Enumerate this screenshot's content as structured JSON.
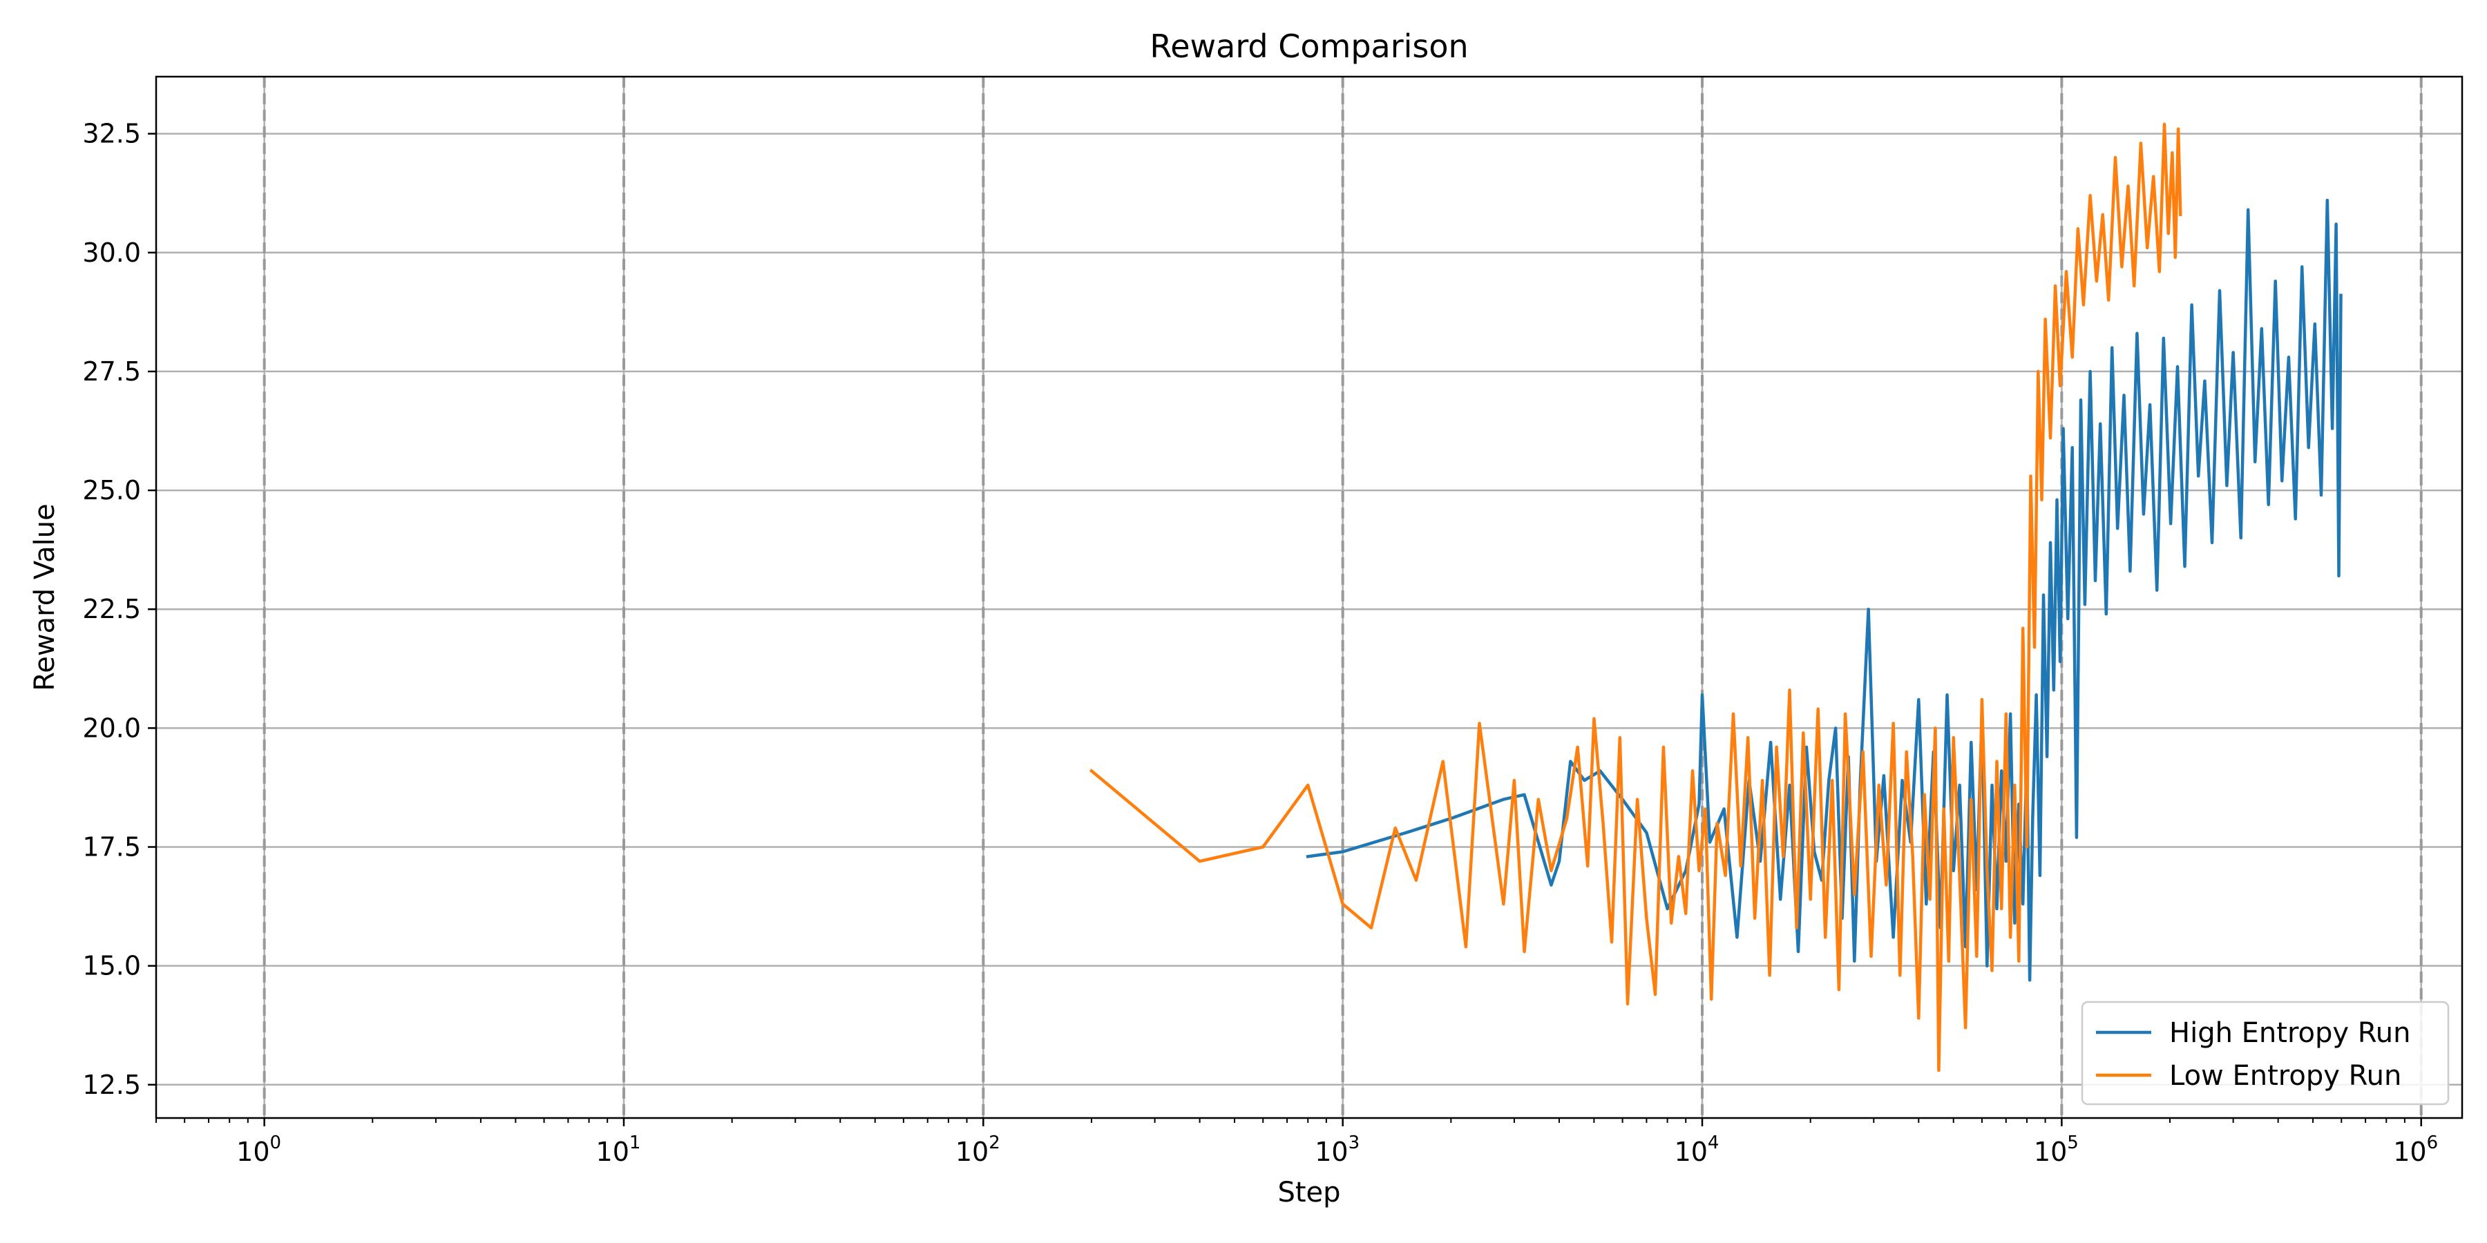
{
  "chart_data": {
    "type": "line",
    "title": "Reward Comparison",
    "xlabel": "Step",
    "ylabel": "Reward Value",
    "xscale": "log",
    "xlim": [
      0.5,
      1300000
    ],
    "ylim": [
      11.8,
      33.7
    ],
    "x_ticks": [
      {
        "base": "10",
        "exp": "0"
      },
      {
        "base": "10",
        "exp": "1"
      },
      {
        "base": "10",
        "exp": "2"
      },
      {
        "base": "10",
        "exp": "3"
      },
      {
        "base": "10",
        "exp": "4"
      },
      {
        "base": "10",
        "exp": "5"
      },
      {
        "base": "10",
        "exp": "6"
      }
    ],
    "y_ticks": [
      "12.5",
      "15.0",
      "17.5",
      "20.0",
      "22.5",
      "25.0",
      "27.5",
      "30.0",
      "32.5"
    ],
    "grid": true,
    "x_grid_style": "dashed",
    "legend_position": "lower-right",
    "series": [
      {
        "name": "High Entropy Run",
        "color": "#1f77b4",
        "points": [
          [
            800,
            17.3
          ],
          [
            1000,
            17.4
          ],
          [
            1500,
            17.8
          ],
          [
            2000,
            18.1
          ],
          [
            2800,
            18.5
          ],
          [
            3200,
            18.6
          ],
          [
            3800,
            16.7
          ],
          [
            4000,
            17.2
          ],
          [
            4300,
            19.3
          ],
          [
            4700,
            18.9
          ],
          [
            5200,
            19.1
          ],
          [
            6000,
            18.5
          ],
          [
            7000,
            17.8
          ],
          [
            8000,
            16.2
          ],
          [
            9000,
            17.0
          ],
          [
            9800,
            18.4
          ],
          [
            10000,
            20.7
          ],
          [
            10500,
            17.6
          ],
          [
            11500,
            18.3
          ],
          [
            12500,
            15.6
          ],
          [
            13500,
            18.9
          ],
          [
            14500,
            17.2
          ],
          [
            15500,
            19.7
          ],
          [
            16500,
            16.4
          ],
          [
            17500,
            18.8
          ],
          [
            18500,
            15.3
          ],
          [
            19500,
            19.6
          ],
          [
            20500,
            17.4
          ],
          [
            21500,
            16.8
          ],
          [
            22500,
            18.9
          ],
          [
            23500,
            20.0
          ],
          [
            24500,
            16.0
          ],
          [
            25500,
            19.4
          ],
          [
            26500,
            15.1
          ],
          [
            27500,
            18.8
          ],
          [
            29000,
            22.5
          ],
          [
            30500,
            17.2
          ],
          [
            32000,
            19.0
          ],
          [
            34000,
            15.6
          ],
          [
            36000,
            18.9
          ],
          [
            38000,
            17.6
          ],
          [
            40000,
            20.6
          ],
          [
            42000,
            16.3
          ],
          [
            44000,
            19.5
          ],
          [
            46000,
            15.8
          ],
          [
            48000,
            20.7
          ],
          [
            50000,
            17.0
          ],
          [
            52000,
            18.8
          ],
          [
            54000,
            15.4
          ],
          [
            56000,
            19.7
          ],
          [
            58000,
            16.6
          ],
          [
            60000,
            20.3
          ],
          [
            62000,
            15.0
          ],
          [
            64000,
            18.8
          ],
          [
            66000,
            16.2
          ],
          [
            68000,
            19.1
          ],
          [
            70000,
            17.2
          ],
          [
            72000,
            20.3
          ],
          [
            74000,
            15.9
          ],
          [
            76000,
            18.4
          ],
          [
            78000,
            16.3
          ],
          [
            80000,
            19.4
          ],
          [
            81500,
            14.7
          ],
          [
            83000,
            18.1
          ],
          [
            85000,
            20.7
          ],
          [
            87000,
            16.9
          ],
          [
            89000,
            22.8
          ],
          [
            91000,
            19.4
          ],
          [
            93000,
            23.9
          ],
          [
            95000,
            20.8
          ],
          [
            97000,
            24.8
          ],
          [
            99000,
            21.4
          ],
          [
            101000,
            26.3
          ],
          [
            104000,
            22.3
          ],
          [
            107000,
            25.9
          ],
          [
            110000,
            17.7
          ],
          [
            113000,
            26.9
          ],
          [
            116000,
            22.6
          ],
          [
            120000,
            27.5
          ],
          [
            124000,
            23.1
          ],
          [
            128000,
            26.4
          ],
          [
            133000,
            22.4
          ],
          [
            138000,
            28.0
          ],
          [
            143000,
            24.2
          ],
          [
            149000,
            27.0
          ],
          [
            155000,
            23.3
          ],
          [
            162000,
            28.3
          ],
          [
            169000,
            24.5
          ],
          [
            176000,
            26.8
          ],
          [
            184000,
            22.9
          ],
          [
            192000,
            28.2
          ],
          [
            201000,
            24.3
          ],
          [
            210000,
            27.6
          ],
          [
            220000,
            23.4
          ],
          [
            230000,
            28.9
          ],
          [
            240000,
            25.3
          ],
          [
            250000,
            27.3
          ],
          [
            262000,
            23.9
          ],
          [
            275000,
            29.2
          ],
          [
            288000,
            25.1
          ],
          [
            300000,
            27.9
          ],
          [
            315000,
            24.0
          ],
          [
            330000,
            30.9
          ],
          [
            345000,
            25.6
          ],
          [
            360000,
            28.4
          ],
          [
            376000,
            24.7
          ],
          [
            393000,
            29.4
          ],
          [
            410000,
            25.2
          ],
          [
            428000,
            27.8
          ],
          [
            447000,
            24.4
          ],
          [
            466000,
            29.7
          ],
          [
            486000,
            25.9
          ],
          [
            506000,
            28.5
          ],
          [
            527000,
            24.9
          ],
          [
            548000,
            31.1
          ],
          [
            566000,
            26.3
          ],
          [
            580000,
            30.6
          ],
          [
            590000,
            23.2
          ],
          [
            598000,
            29.1
          ]
        ]
      },
      {
        "name": "Low Entropy Run",
        "color": "#ff7f0e",
        "points": [
          [
            200,
            19.1
          ],
          [
            400,
            17.2
          ],
          [
            600,
            17.5
          ],
          [
            800,
            18.8
          ],
          [
            1000,
            16.3
          ],
          [
            1200,
            15.8
          ],
          [
            1400,
            17.9
          ],
          [
            1600,
            16.8
          ],
          [
            1900,
            19.3
          ],
          [
            2200,
            15.4
          ],
          [
            2400,
            20.1
          ],
          [
            2800,
            16.3
          ],
          [
            3000,
            18.9
          ],
          [
            3200,
            15.3
          ],
          [
            3500,
            18.5
          ],
          [
            3800,
            17.0
          ],
          [
            4200,
            18.1
          ],
          [
            4500,
            19.6
          ],
          [
            4800,
            17.1
          ],
          [
            5000,
            20.2
          ],
          [
            5300,
            18.0
          ],
          [
            5600,
            15.5
          ],
          [
            5900,
            19.8
          ],
          [
            6200,
            14.2
          ],
          [
            6600,
            18.5
          ],
          [
            7000,
            16.0
          ],
          [
            7400,
            14.4
          ],
          [
            7800,
            19.6
          ],
          [
            8200,
            15.9
          ],
          [
            8600,
            17.3
          ],
          [
            9000,
            16.1
          ],
          [
            9400,
            19.1
          ],
          [
            9800,
            17.0
          ],
          [
            10200,
            18.3
          ],
          [
            10600,
            14.3
          ],
          [
            11000,
            18.0
          ],
          [
            11600,
            16.9
          ],
          [
            12200,
            20.3
          ],
          [
            12800,
            17.1
          ],
          [
            13400,
            19.8
          ],
          [
            14000,
            16.0
          ],
          [
            14700,
            18.9
          ],
          [
            15400,
            14.8
          ],
          [
            16100,
            19.6
          ],
          [
            16800,
            17.3
          ],
          [
            17500,
            20.8
          ],
          [
            18300,
            15.8
          ],
          [
            19100,
            19.9
          ],
          [
            20000,
            16.4
          ],
          [
            21000,
            20.4
          ],
          [
            22000,
            15.6
          ],
          [
            23000,
            18.9
          ],
          [
            24000,
            14.5
          ],
          [
            25000,
            20.3
          ],
          [
            26500,
            16.5
          ],
          [
            28000,
            19.5
          ],
          [
            29500,
            15.2
          ],
          [
            31000,
            18.8
          ],
          [
            32500,
            16.7
          ],
          [
            34000,
            20.1
          ],
          [
            35500,
            14.8
          ],
          [
            37000,
            19.5
          ],
          [
            38500,
            17.3
          ],
          [
            40000,
            13.9
          ],
          [
            41500,
            18.6
          ],
          [
            43000,
            16.4
          ],
          [
            44500,
            20.0
          ],
          [
            45500,
            12.8
          ],
          [
            47000,
            18.3
          ],
          [
            48500,
            15.1
          ],
          [
            50000,
            19.8
          ],
          [
            52000,
            16.9
          ],
          [
            54000,
            13.7
          ],
          [
            56000,
            18.5
          ],
          [
            58000,
            15.2
          ],
          [
            60000,
            20.6
          ],
          [
            62000,
            17.0
          ],
          [
            64000,
            14.9
          ],
          [
            66000,
            19.3
          ],
          [
            68000,
            16.2
          ],
          [
            70000,
            20.3
          ],
          [
            72000,
            15.6
          ],
          [
            74000,
            18.8
          ],
          [
            76000,
            15.1
          ],
          [
            78000,
            22.1
          ],
          [
            80000,
            17.5
          ],
          [
            82000,
            25.3
          ],
          [
            84000,
            21.7
          ],
          [
            86000,
            27.5
          ],
          [
            88000,
            24.8
          ],
          [
            90000,
            28.6
          ],
          [
            93000,
            26.1
          ],
          [
            96000,
            29.3
          ],
          [
            99000,
            27.2
          ],
          [
            103000,
            29.6
          ],
          [
            107000,
            27.8
          ],
          [
            111000,
            30.5
          ],
          [
            115000,
            28.9
          ],
          [
            120000,
            31.2
          ],
          [
            125000,
            29.4
          ],
          [
            130000,
            30.8
          ],
          [
            135000,
            29.0
          ],
          [
            141000,
            32.0
          ],
          [
            147000,
            29.7
          ],
          [
            153000,
            31.4
          ],
          [
            159000,
            29.3
          ],
          [
            166000,
            32.3
          ],
          [
            173000,
            30.1
          ],
          [
            180000,
            31.6
          ],
          [
            187000,
            29.6
          ],
          [
            193000,
            32.7
          ],
          [
            198000,
            30.4
          ],
          [
            203000,
            32.1
          ],
          [
            207000,
            29.9
          ],
          [
            211000,
            32.6
          ],
          [
            214000,
            30.8
          ]
        ]
      }
    ]
  }
}
